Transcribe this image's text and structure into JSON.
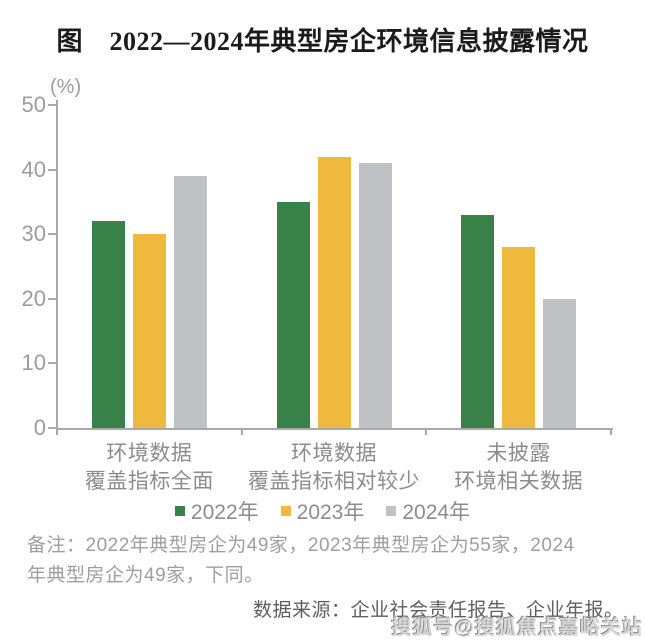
{
  "page": {
    "title": "图　2022—2024年典型房企环境信息披露情况",
    "note_lines": [
      "备注：2022年典型房企为49家，2023年典型房企为55家，2024",
      "年典型房企为49家，下同。"
    ],
    "source": "数据来源：企业社会责任报告、企业年报。",
    "watermark": "搜狐号@搜狐焦点嘉峪关站"
  },
  "chart_data": {
    "type": "bar",
    "title": "图　2022—2024年典型房企环境信息披露情况",
    "unit_label": "(%)",
    "xlabel": "",
    "ylabel": "(%)",
    "ylim": [
      0,
      50
    ],
    "yticks": [
      0,
      10,
      20,
      30,
      40,
      50
    ],
    "grid": false,
    "legend_position": "bottom",
    "categories": [
      [
        "环境数据",
        "覆盖指标全面"
      ],
      [
        "环境数据",
        "覆盖指标相对较少"
      ],
      [
        "未披露",
        "环境相关数据"
      ]
    ],
    "series": [
      {
        "name": "2022年",
        "color": "#388249",
        "values": [
          32,
          35,
          33
        ]
      },
      {
        "name": "2023年",
        "color": "#EEB93C",
        "values": [
          30,
          42,
          28
        ]
      },
      {
        "name": "2024年",
        "color": "#BFC1C4",
        "values": [
          39,
          41,
          20
        ]
      }
    ],
    "colors": {
      "axis": "#a9a9a9",
      "tick_label": "#9c9c9c",
      "category_label": "#8c8c8c",
      "legend_text": "#8c8c8c"
    }
  }
}
